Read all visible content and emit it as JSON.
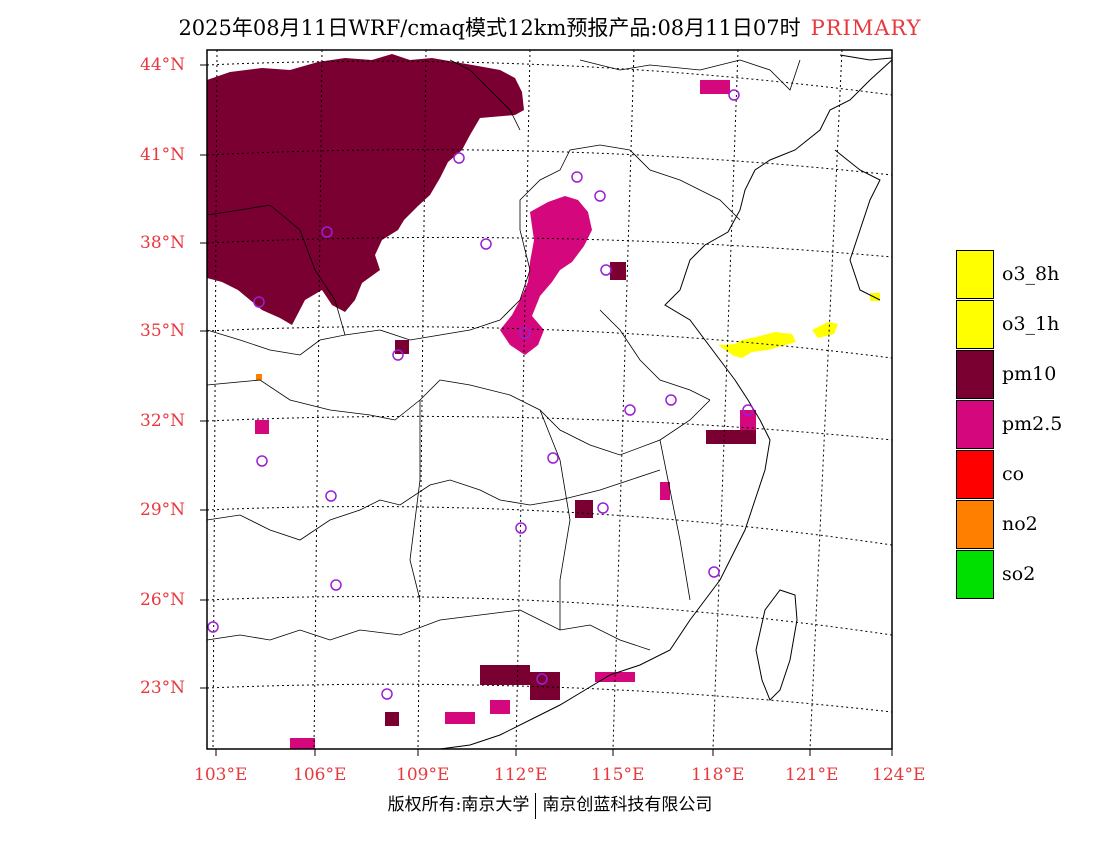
{
  "title": {
    "main": "2025年08月11日WRF/cmaq模式12km预报产品:08月11日07时",
    "subtitle": "PRIMARY"
  },
  "axes": {
    "lat_labels": [
      "44°N",
      "41°N",
      "38°N",
      "35°N",
      "32°N",
      "29°N",
      "26°N",
      "23°N"
    ],
    "lon_labels": [
      "103°E",
      "106°E",
      "109°E",
      "112°E",
      "115°E",
      "118°E",
      "121°E",
      "124°E"
    ]
  },
  "legend": {
    "items": [
      {
        "label": "o3_8h",
        "color": "#ffff00"
      },
      {
        "label": "o3_1h",
        "color": "#ffff00"
      },
      {
        "label": "pm10",
        "color": "#7a0031"
      },
      {
        "label": "pm2.5",
        "color": "#d4087c"
      },
      {
        "label": "co",
        "color": "#ff0000"
      },
      {
        "label": "no2",
        "color": "#ff7f00"
      },
      {
        "label": "so2",
        "color": "#00e000"
      }
    ]
  },
  "footer": {
    "left": "版权所有:南京大学",
    "right": "南京创蓝科技有限公司"
  },
  "colors": {
    "axis_label": "#e8383d",
    "station": "#9b1fd6",
    "pm10": "#7a0031",
    "pm25": "#d4087c",
    "o3": "#ffff00",
    "no2": "#ff7f00"
  },
  "icons": [
    "station-marker-icon"
  ]
}
